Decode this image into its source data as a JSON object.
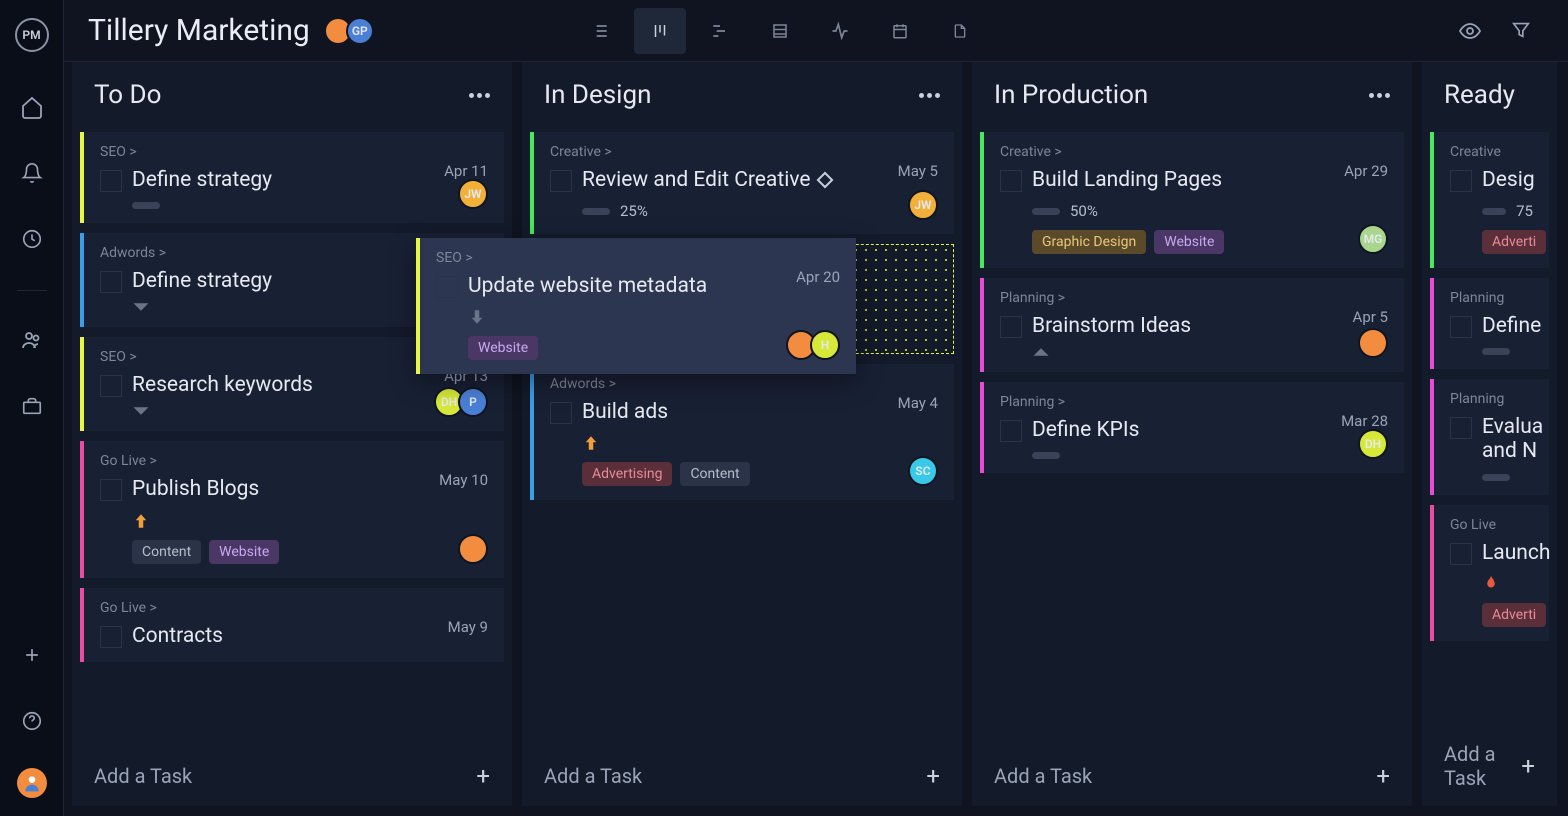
{
  "logo": "PM",
  "project": {
    "title": "Tillery Marketing",
    "members": [
      {
        "bg": "#f28c3e",
        "label": ""
      },
      {
        "bg": "#4a7fd6",
        "label": "GP"
      }
    ]
  },
  "colors": {
    "accent_yellow": "#e8f545",
    "accent_blue": "#3d9de8",
    "accent_pink": "#e84ca3",
    "accent_green": "#4ae85e",
    "accent_magenta": "#e84cd6",
    "tag_website_bg": "#4a3766",
    "tag_website_fg": "#c9a8f0",
    "tag_content_bg": "#2a3348",
    "tag_content_fg": "#b7bdcc",
    "tag_advertising_bg": "#5a2f3a",
    "tag_advertising_fg": "#e88a9a",
    "tag_graphic_bg": "#5a4a2a",
    "tag_graphic_fg": "#e8c87a"
  },
  "columns": [
    {
      "title": "To Do",
      "add_label": "Add a Task",
      "cards": [
        {
          "cat": "SEO >",
          "title": "Define strategy",
          "date": "Apr 11",
          "border": "#e8f545",
          "progress": "pill",
          "avatars": [
            {
              "bg": "#f2b038",
              "label": "JW"
            }
          ]
        },
        {
          "cat": "Adwords >",
          "title": "Define strategy",
          "date": "",
          "border": "#3d9de8",
          "chev": true
        },
        {
          "cat": "SEO >",
          "title": "Research keywords",
          "date": "Apr 13",
          "border": "#e8f545",
          "chev": true,
          "avatars": [
            {
              "bg": "#d6e838",
              "label": "DH"
            },
            {
              "bg": "#4a7fd6",
              "label": "P"
            }
          ]
        },
        {
          "cat": "Go Live >",
          "title": "Publish Blogs",
          "date": "May 10",
          "border": "#e84ca3",
          "priority": "up",
          "avatars": [
            {
              "bg": "#f28c3e",
              "label": ""
            }
          ],
          "tags": [
            {
              "text": "Content",
              "kind": "content"
            },
            {
              "text": "Website",
              "kind": "website"
            }
          ]
        },
        {
          "cat": "Go Live >",
          "title": "Contracts",
          "date": "May 9",
          "border": "#e84ca3"
        }
      ]
    },
    {
      "title": "In Design",
      "add_label": "Add a Task",
      "dropzone_after": 0,
      "cards": [
        {
          "cat": "Creative >",
          "title": "Review and Edit Creative",
          "date": "May 5",
          "border": "#4ae85e",
          "diamond": true,
          "progress": "25%",
          "avatars": [
            {
              "bg": "#f2b038",
              "label": "JW"
            }
          ]
        },
        {
          "cat": "Adwords >",
          "title": "Build ads",
          "date": "May 4",
          "border": "#3d9de8",
          "priority": "up",
          "avatars": [
            {
              "bg": "#38c9e8",
              "label": "SC"
            }
          ],
          "tags": [
            {
              "text": "Advertising",
              "kind": "advertising"
            },
            {
              "text": "Content",
              "kind": "content"
            }
          ]
        }
      ]
    },
    {
      "title": "In Production",
      "add_label": "Add a Task",
      "cards": [
        {
          "cat": "Creative >",
          "title": "Build Landing Pages",
          "date": "Apr 29",
          "border": "#4ae85e",
          "progress": "50%",
          "avatars": [
            {
              "bg": "#a8d68c",
              "label": "MG"
            }
          ],
          "tags": [
            {
              "text": "Graphic Design",
              "kind": "graphic"
            },
            {
              "text": "Website",
              "kind": "website"
            }
          ]
        },
        {
          "cat": "Planning >",
          "title": "Brainstorm Ideas",
          "date": "Apr 5",
          "border": "#e84cd6",
          "priority_tri": "up",
          "avatars": [
            {
              "bg": "#f28c3e",
              "label": ""
            }
          ]
        },
        {
          "cat": "Planning >",
          "title": "Define KPIs",
          "date": "Mar 28",
          "border": "#e84cd6",
          "progress": "pill",
          "avatars": [
            {
              "bg": "#d6e838",
              "label": "DH"
            }
          ]
        }
      ]
    },
    {
      "title": "Ready",
      "partial": true,
      "add_label": "Add a Task",
      "cards": [
        {
          "cat": "Creative",
          "title": "Desig",
          "border": "#4ae85e",
          "progress": "75",
          "tags": [
            {
              "text": "Adverti",
              "kind": "advertising"
            }
          ]
        },
        {
          "cat": "Planning",
          "title": "Define",
          "border": "#e84cd6",
          "progress": "pill"
        },
        {
          "cat": "Planning",
          "title": "Evalua\nand N",
          "border": "#e84cd6",
          "progress": "pill"
        },
        {
          "cat": "Go Live",
          "title": "Launch",
          "border": "#e84ca3",
          "flame": true,
          "tags": [
            {
              "text": "Adverti",
              "kind": "advertising"
            }
          ]
        }
      ]
    }
  ],
  "dragging": {
    "cat": "SEO >",
    "title": "Update website metadata",
    "date": "Apr 20",
    "border": "#e8f545",
    "tags": [
      {
        "text": "Website",
        "kind": "website"
      }
    ],
    "avatars": [
      {
        "bg": "#f28c3e",
        "label": ""
      },
      {
        "bg": "#d6e838",
        "label": "H"
      }
    ]
  }
}
